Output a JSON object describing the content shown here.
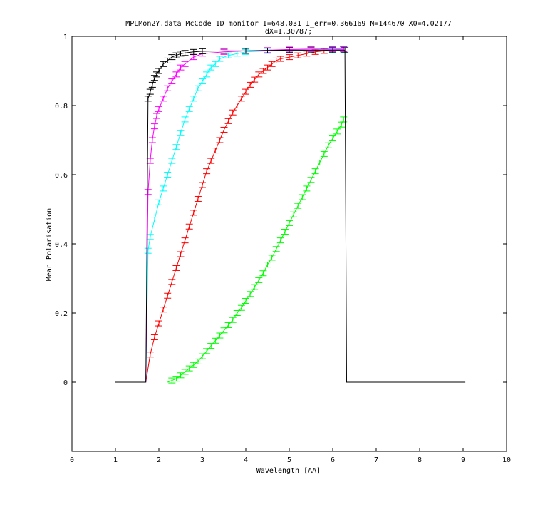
{
  "chart_data": {
    "type": "line",
    "title_line1": "MPLMon2Y.data McCode 1D monitor I=648.031 I_err=0.366169 N=144670 X0=4.02177",
    "title_line2": "dX=1.30787;",
    "xlabel": "Wavelength [AA]",
    "ylabel": "Mean Polarisation",
    "xlim": [
      0,
      10
    ],
    "ylim": [
      -0.2,
      1.0
    ],
    "xticks": [
      "0",
      "1",
      "2",
      "3",
      "4",
      "5",
      "6",
      "7",
      "8",
      "9",
      "10"
    ],
    "yticks": [
      "0",
      "0.2",
      "0.4",
      "0.6",
      "0.8",
      "1"
    ],
    "grid": false,
    "error_bars": true,
    "series": [
      {
        "color": "#000000",
        "x": [
          1.0,
          1.7,
          1.75,
          1.8,
          1.85,
          1.9,
          1.95,
          2.0,
          2.1,
          2.2,
          2.3,
          2.4,
          2.5,
          2.6,
          2.8,
          3.0,
          3.5,
          4.0,
          4.5,
          5.0,
          5.5,
          6.0,
          6.28,
          6.32,
          9.05
        ],
        "y": [
          0,
          0,
          0.82,
          0.84,
          0.86,
          0.88,
          0.89,
          0.9,
          0.92,
          0.93,
          0.94,
          0.945,
          0.95,
          0.952,
          0.955,
          0.957,
          0.958,
          0.958,
          0.959,
          0.96,
          0.96,
          0.96,
          0.96,
          0,
          0
        ]
      },
      {
        "color": "#ff00ff",
        "x": [
          1.7,
          1.75,
          1.8,
          1.85,
          1.9,
          1.95,
          2.0,
          2.1,
          2.2,
          2.3,
          2.4,
          2.5,
          2.6,
          2.8,
          3.0,
          3.5,
          4.0,
          4.5,
          5.0,
          5.5,
          6.0,
          6.25
        ],
        "y": [
          0,
          0.55,
          0.64,
          0.7,
          0.74,
          0.77,
          0.79,
          0.82,
          0.85,
          0.87,
          0.89,
          0.91,
          0.92,
          0.94,
          0.95,
          0.955,
          0.958,
          0.96,
          0.962,
          0.963,
          0.963,
          0.963
        ]
      },
      {
        "color": "#00ffff",
        "x": [
          1.7,
          1.75,
          1.8,
          1.9,
          2.0,
          2.1,
          2.2,
          2.3,
          2.4,
          2.5,
          2.6,
          2.7,
          2.8,
          2.9,
          3.0,
          3.1,
          3.2,
          3.3,
          3.4,
          3.6,
          3.8,
          4.0,
          4.5,
          5.0,
          5.5,
          6.0,
          6.25
        ],
        "y": [
          0,
          0.38,
          0.42,
          0.47,
          0.52,
          0.56,
          0.6,
          0.64,
          0.68,
          0.72,
          0.76,
          0.79,
          0.82,
          0.85,
          0.87,
          0.89,
          0.91,
          0.92,
          0.935,
          0.945,
          0.95,
          0.955,
          0.958,
          0.96,
          0.96,
          0.962,
          0.962
        ]
      },
      {
        "color": "#ff0000",
        "x": [
          1.7,
          1.8,
          1.9,
          2.0,
          2.1,
          2.2,
          2.3,
          2.4,
          2.5,
          2.6,
          2.7,
          2.8,
          2.9,
          3.0,
          3.1,
          3.2,
          3.3,
          3.4,
          3.5,
          3.6,
          3.7,
          3.8,
          3.9,
          4.0,
          4.1,
          4.2,
          4.3,
          4.4,
          4.5,
          4.6,
          4.7,
          4.8,
          5.0,
          5.2,
          5.4,
          5.6,
          5.8,
          6.0,
          6.25
        ],
        "y": [
          0,
          0.08,
          0.13,
          0.17,
          0.21,
          0.25,
          0.29,
          0.33,
          0.37,
          0.41,
          0.45,
          0.49,
          0.53,
          0.57,
          0.61,
          0.64,
          0.67,
          0.7,
          0.73,
          0.755,
          0.78,
          0.8,
          0.82,
          0.84,
          0.86,
          0.875,
          0.89,
          0.9,
          0.91,
          0.92,
          0.93,
          0.935,
          0.94,
          0.945,
          0.95,
          0.955,
          0.958,
          0.96,
          0.962
        ]
      },
      {
        "color": "#00ff00",
        "x": [
          2.2,
          2.3,
          2.4,
          2.5,
          2.6,
          2.7,
          2.8,
          2.9,
          3.0,
          3.1,
          3.2,
          3.3,
          3.4,
          3.5,
          3.6,
          3.7,
          3.8,
          3.9,
          4.0,
          4.1,
          4.2,
          4.3,
          4.4,
          4.5,
          4.6,
          4.7,
          4.8,
          4.9,
          5.0,
          5.1,
          5.2,
          5.3,
          5.4,
          5.5,
          5.6,
          5.7,
          5.8,
          5.9,
          6.0,
          6.1,
          6.2,
          6.25
        ],
        "y": [
          0,
          0.005,
          0.01,
          0.02,
          0.03,
          0.04,
          0.05,
          0.06,
          0.075,
          0.09,
          0.105,
          0.12,
          0.135,
          0.15,
          0.165,
          0.18,
          0.2,
          0.215,
          0.235,
          0.255,
          0.275,
          0.295,
          0.315,
          0.34,
          0.36,
          0.385,
          0.41,
          0.435,
          0.46,
          0.485,
          0.51,
          0.535,
          0.56,
          0.585,
          0.61,
          0.635,
          0.66,
          0.685,
          0.705,
          0.725,
          0.745,
          0.76
        ]
      }
    ]
  }
}
